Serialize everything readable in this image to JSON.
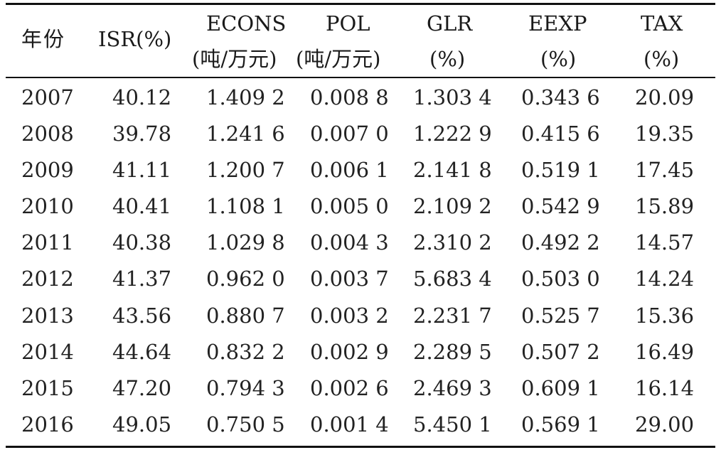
{
  "table": {
    "headers": {
      "year": "年份",
      "isr": "ISR(%)",
      "econs_line1": "ECONS",
      "econs_line2": "(吨/万元)",
      "pol_line1": "POL",
      "pol_line2": "(吨/万元)",
      "glr_line1": "GLR",
      "glr_line2": "(%)",
      "eexp_line1": "EEXP",
      "eexp_line2": "(%)",
      "tax_line1": "TAX",
      "tax_line2": "(%)"
    },
    "rows": [
      {
        "year": "2007",
        "isr": "40.12",
        "econs": "1.409 2",
        "pol": "0.008 8",
        "glr": "1.303 4",
        "eexp": "0.343 6",
        "tax": "20.09"
      },
      {
        "year": "2008",
        "isr": "39.78",
        "econs": "1.241 6",
        "pol": "0.007 0",
        "glr": "1.222 9",
        "eexp": "0.415 6",
        "tax": "19.35"
      },
      {
        "year": "2009",
        "isr": "41.11",
        "econs": "1.200 7",
        "pol": "0.006 1",
        "glr": "2.141 8",
        "eexp": "0.519 1",
        "tax": "17.45"
      },
      {
        "year": "2010",
        "isr": "40.41",
        "econs": "1.108 1",
        "pol": "0.005 0",
        "glr": "2.109 2",
        "eexp": "0.542 9",
        "tax": "15.89"
      },
      {
        "year": "2011",
        "isr": "40.38",
        "econs": "1.029 8",
        "pol": "0.004 3",
        "glr": "2.310 2",
        "eexp": "0.492 2",
        "tax": "14.57"
      },
      {
        "year": "2012",
        "isr": "41.37",
        "econs": "0.962 0",
        "pol": "0.003 7",
        "glr": "5.683 4",
        "eexp": "0.503 0",
        "tax": "14.24"
      },
      {
        "year": "2013",
        "isr": "43.56",
        "econs": "0.880 7",
        "pol": "0.003 2",
        "glr": "2.231 7",
        "eexp": "0.525 7",
        "tax": "15.36"
      },
      {
        "year": "2014",
        "isr": "44.64",
        "econs": "0.832 2",
        "pol": "0.002 9",
        "glr": "2.289 5",
        "eexp": "0.507 2",
        "tax": "16.49"
      },
      {
        "year": "2015",
        "isr": "47.20",
        "econs": "0.794 3",
        "pol": "0.002 6",
        "glr": "2.469 3",
        "eexp": "0.609 1",
        "tax": "16.14"
      },
      {
        "year": "2016",
        "isr": "49.05",
        "econs": "0.750 5",
        "pol": "0.001 4",
        "glr": "5.450 1",
        "eexp": "0.569 1",
        "tax": "29.00"
      }
    ]
  }
}
